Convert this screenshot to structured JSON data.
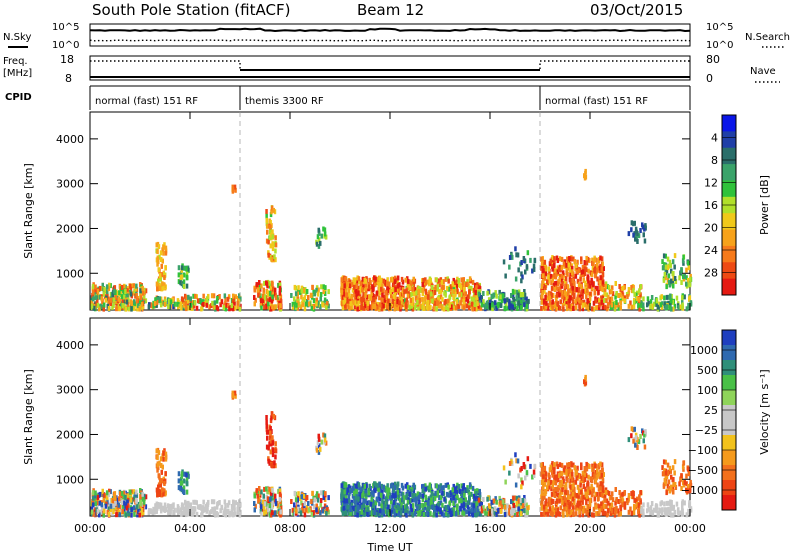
{
  "header": {
    "station_title": "South Pole Station (fitACF)",
    "beam_label": "Beam 12",
    "date_label": "03/Oct/2015"
  },
  "summary_panel": {
    "left_labels": {
      "nsky": "N.Sky",
      "freq": "Freq.",
      "freq_unit": "[MHz]",
      "cpid": "CPID"
    },
    "right_labels": {
      "nsearch": "N.Search",
      "nave": "Nave"
    },
    "nsky_ticks": [
      "10^5",
      "10^0"
    ],
    "freq_ticks": [
      "18",
      "8"
    ],
    "nave_ticks": [
      "80",
      "0"
    ],
    "nsearch_ticks": [
      "10^5",
      "10^0"
    ],
    "cpid_segments": [
      {
        "start_hour": 0,
        "end_hour": 6,
        "label": "normal (fast) 151 RF"
      },
      {
        "start_hour": 6,
        "end_hour": 18,
        "label": "themis 3300 RF"
      },
      {
        "start_hour": 18,
        "end_hour": 24,
        "label": "normal (fast) 151 RF"
      }
    ]
  },
  "chart_data": [
    {
      "type": "heatmap",
      "ylabel": "Slant Range [km]",
      "xlabel": "Time UT",
      "x_ticks": [
        "00:00",
        "04:00",
        "08:00",
        "12:00",
        "16:00",
        "20:00",
        "00:00"
      ],
      "y_ticks": [
        "1000",
        "2000",
        "3000",
        "4000"
      ],
      "ylim": [
        180,
        4600
      ],
      "xlim_hours": [
        0,
        24
      ],
      "colorbar": {
        "label": "Power [dB]",
        "tick_labels": [
          "4",
          "8",
          "12",
          "16",
          "20",
          "24",
          "28"
        ],
        "colors": [
          "#0a16e8",
          "#1f3fa7",
          "#2a6e6a",
          "#3aa36a",
          "#2fc23a",
          "#b0e02a",
          "#f0c91a",
          "#f7a21a",
          "#f77a1a",
          "#ee4a14",
          "#e51a12"
        ]
      }
    },
    {
      "type": "heatmap",
      "ylabel": "Slant Range [km]",
      "xlabel": "Time UT",
      "x_ticks": [
        "00:00",
        "04:00",
        "08:00",
        "12:00",
        "16:00",
        "20:00",
        "00:00"
      ],
      "y_ticks": [
        "1000",
        "2000",
        "3000",
        "4000"
      ],
      "ylim": [
        180,
        4600
      ],
      "xlim_hours": [
        0,
        24
      ],
      "colorbar": {
        "label": "Velocity [m s⁻¹]",
        "tick_labels": [
          "1000",
          "500",
          "100",
          "25",
          "−25",
          "−100",
          "−500",
          "−1000"
        ],
        "colors": [
          "#1f3fbf",
          "#2f6ab0",
          "#2f8f7a",
          "#49c047",
          "#8fd45a",
          "#c8c8c8",
          "#c8c8c8",
          "#f2c21c",
          "#f59a1c",
          "#f3701c",
          "#ee4414",
          "#e51a12"
        ]
      }
    }
  ]
}
